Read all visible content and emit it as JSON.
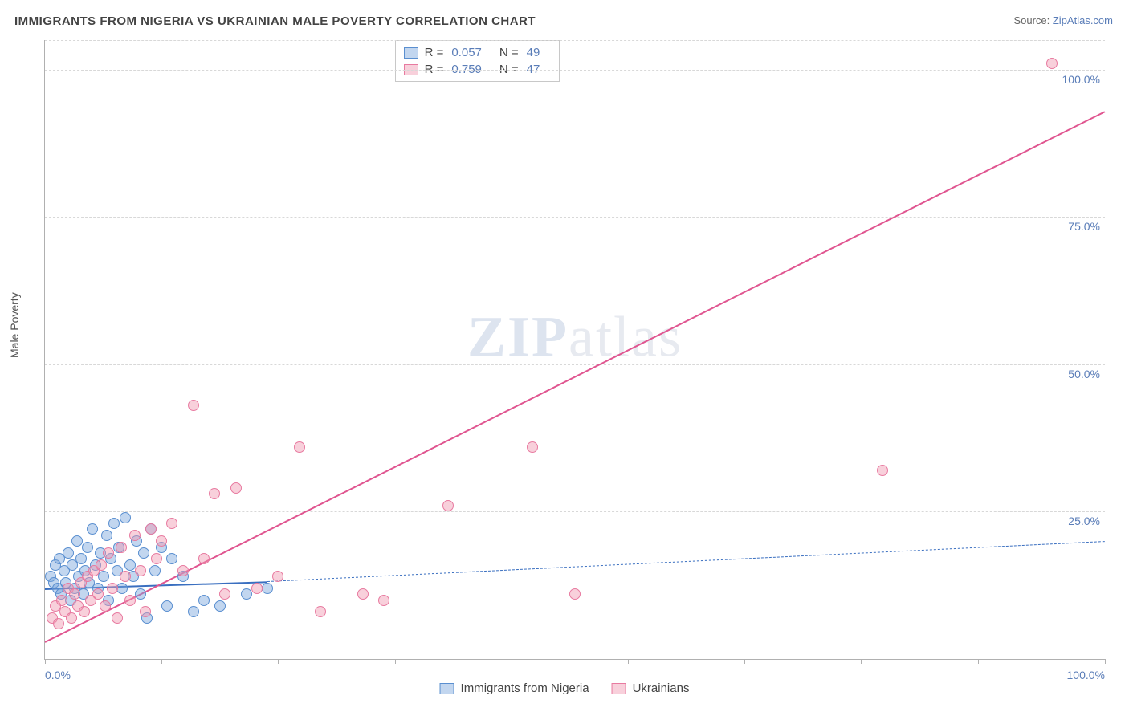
{
  "title": "IMMIGRANTS FROM NIGERIA VS UKRAINIAN MALE POVERTY CORRELATION CHART",
  "source_prefix": "Source: ",
  "source_link": "ZipAtlas.com",
  "ylabel": "Male Poverty",
  "watermark_zip": "ZIP",
  "watermark_atlas": "atlas",
  "chart": {
    "type": "scatter",
    "xlim": [
      0,
      100
    ],
    "ylim": [
      0,
      105
    ],
    "xtick_positions": [
      0,
      11,
      22,
      33,
      44,
      55,
      66,
      77,
      88,
      100
    ],
    "xtick_labels": {
      "0": "0.0%",
      "100": "100.0%"
    },
    "ytick_positions": [
      25,
      50,
      75,
      100
    ],
    "ytick_labels": [
      "25.0%",
      "50.0%",
      "75.0%",
      "100.0%"
    ],
    "grid_color": "#d8d8d8",
    "axis_color": "#b0b0b0",
    "background_color": "#ffffff",
    "marker_radius": 7,
    "marker_stroke_width": 1.5,
    "series": [
      {
        "name": "Immigrants from Nigeria",
        "fill_color": "rgba(120,165,220,0.45)",
        "stroke_color": "#5a8fd0",
        "R": "0.057",
        "N": "49",
        "trend": {
          "x1": 0,
          "y1": 12,
          "x2": 21,
          "y2": 13.2,
          "dash_ext_x2": 100,
          "dash_ext_y2": 20,
          "color": "#3a6fc0",
          "width": 2,
          "solid_dash": true
        },
        "points": [
          [
            0.5,
            14
          ],
          [
            0.8,
            13
          ],
          [
            1.0,
            16
          ],
          [
            1.2,
            12
          ],
          [
            1.4,
            17
          ],
          [
            1.5,
            11
          ],
          [
            1.8,
            15
          ],
          [
            2.0,
            13
          ],
          [
            2.2,
            18
          ],
          [
            2.4,
            10
          ],
          [
            2.6,
            16
          ],
          [
            2.8,
            12
          ],
          [
            3.0,
            20
          ],
          [
            3.2,
            14
          ],
          [
            3.4,
            17
          ],
          [
            3.6,
            11
          ],
          [
            3.8,
            15
          ],
          [
            4.0,
            19
          ],
          [
            4.2,
            13
          ],
          [
            4.5,
            22
          ],
          [
            4.8,
            16
          ],
          [
            5.0,
            12
          ],
          [
            5.2,
            18
          ],
          [
            5.5,
            14
          ],
          [
            5.8,
            21
          ],
          [
            6.0,
            10
          ],
          [
            6.2,
            17
          ],
          [
            6.5,
            23
          ],
          [
            6.8,
            15
          ],
          [
            7.0,
            19
          ],
          [
            7.3,
            12
          ],
          [
            7.6,
            24
          ],
          [
            8.0,
            16
          ],
          [
            8.3,
            14
          ],
          [
            8.6,
            20
          ],
          [
            9.0,
            11
          ],
          [
            9.3,
            18
          ],
          [
            9.6,
            7
          ],
          [
            10.0,
            22
          ],
          [
            10.4,
            15
          ],
          [
            11.0,
            19
          ],
          [
            11.5,
            9
          ],
          [
            12.0,
            17
          ],
          [
            13.0,
            14
          ],
          [
            14.0,
            8
          ],
          [
            15.0,
            10
          ],
          [
            16.5,
            9
          ],
          [
            19.0,
            11
          ],
          [
            21.0,
            12
          ]
        ]
      },
      {
        "name": "Ukrainians",
        "fill_color": "rgba(240,150,175,0.45)",
        "stroke_color": "#e87aa0",
        "R": "0.759",
        "N": "47",
        "trend": {
          "x1": 0,
          "y1": 3,
          "x2": 100,
          "y2": 93,
          "color": "#e05590",
          "width": 2.5,
          "solid_dash": false
        },
        "points": [
          [
            0.7,
            7
          ],
          [
            1.0,
            9
          ],
          [
            1.3,
            6
          ],
          [
            1.6,
            10
          ],
          [
            1.9,
            8
          ],
          [
            2.2,
            12
          ],
          [
            2.5,
            7
          ],
          [
            2.8,
            11
          ],
          [
            3.1,
            9
          ],
          [
            3.4,
            13
          ],
          [
            3.7,
            8
          ],
          [
            4.0,
            14
          ],
          [
            4.3,
            10
          ],
          [
            4.6,
            15
          ],
          [
            5.0,
            11
          ],
          [
            5.3,
            16
          ],
          [
            5.7,
            9
          ],
          [
            6.0,
            18
          ],
          [
            6.4,
            12
          ],
          [
            6.8,
            7
          ],
          [
            7.2,
            19
          ],
          [
            7.6,
            14
          ],
          [
            8.0,
            10
          ],
          [
            8.5,
            21
          ],
          [
            9.0,
            15
          ],
          [
            9.5,
            8
          ],
          [
            10.0,
            22
          ],
          [
            10.5,
            17
          ],
          [
            11.0,
            20
          ],
          [
            12.0,
            23
          ],
          [
            13.0,
            15
          ],
          [
            14.0,
            43
          ],
          [
            15.0,
            17
          ],
          [
            16.0,
            28
          ],
          [
            17.0,
            11
          ],
          [
            18.0,
            29
          ],
          [
            20.0,
            12
          ],
          [
            22.0,
            14
          ],
          [
            24.0,
            36
          ],
          [
            26.0,
            8
          ],
          [
            30.0,
            11
          ],
          [
            32.0,
            10
          ],
          [
            38.0,
            26
          ],
          [
            46.0,
            36
          ],
          [
            50.0,
            11
          ],
          [
            79.0,
            32
          ],
          [
            95.0,
            101
          ]
        ]
      }
    ]
  },
  "legend_top_labels": {
    "R": "R =",
    "N": "N ="
  },
  "legend_bottom": [
    "Immigrants from Nigeria",
    "Ukrainians"
  ]
}
